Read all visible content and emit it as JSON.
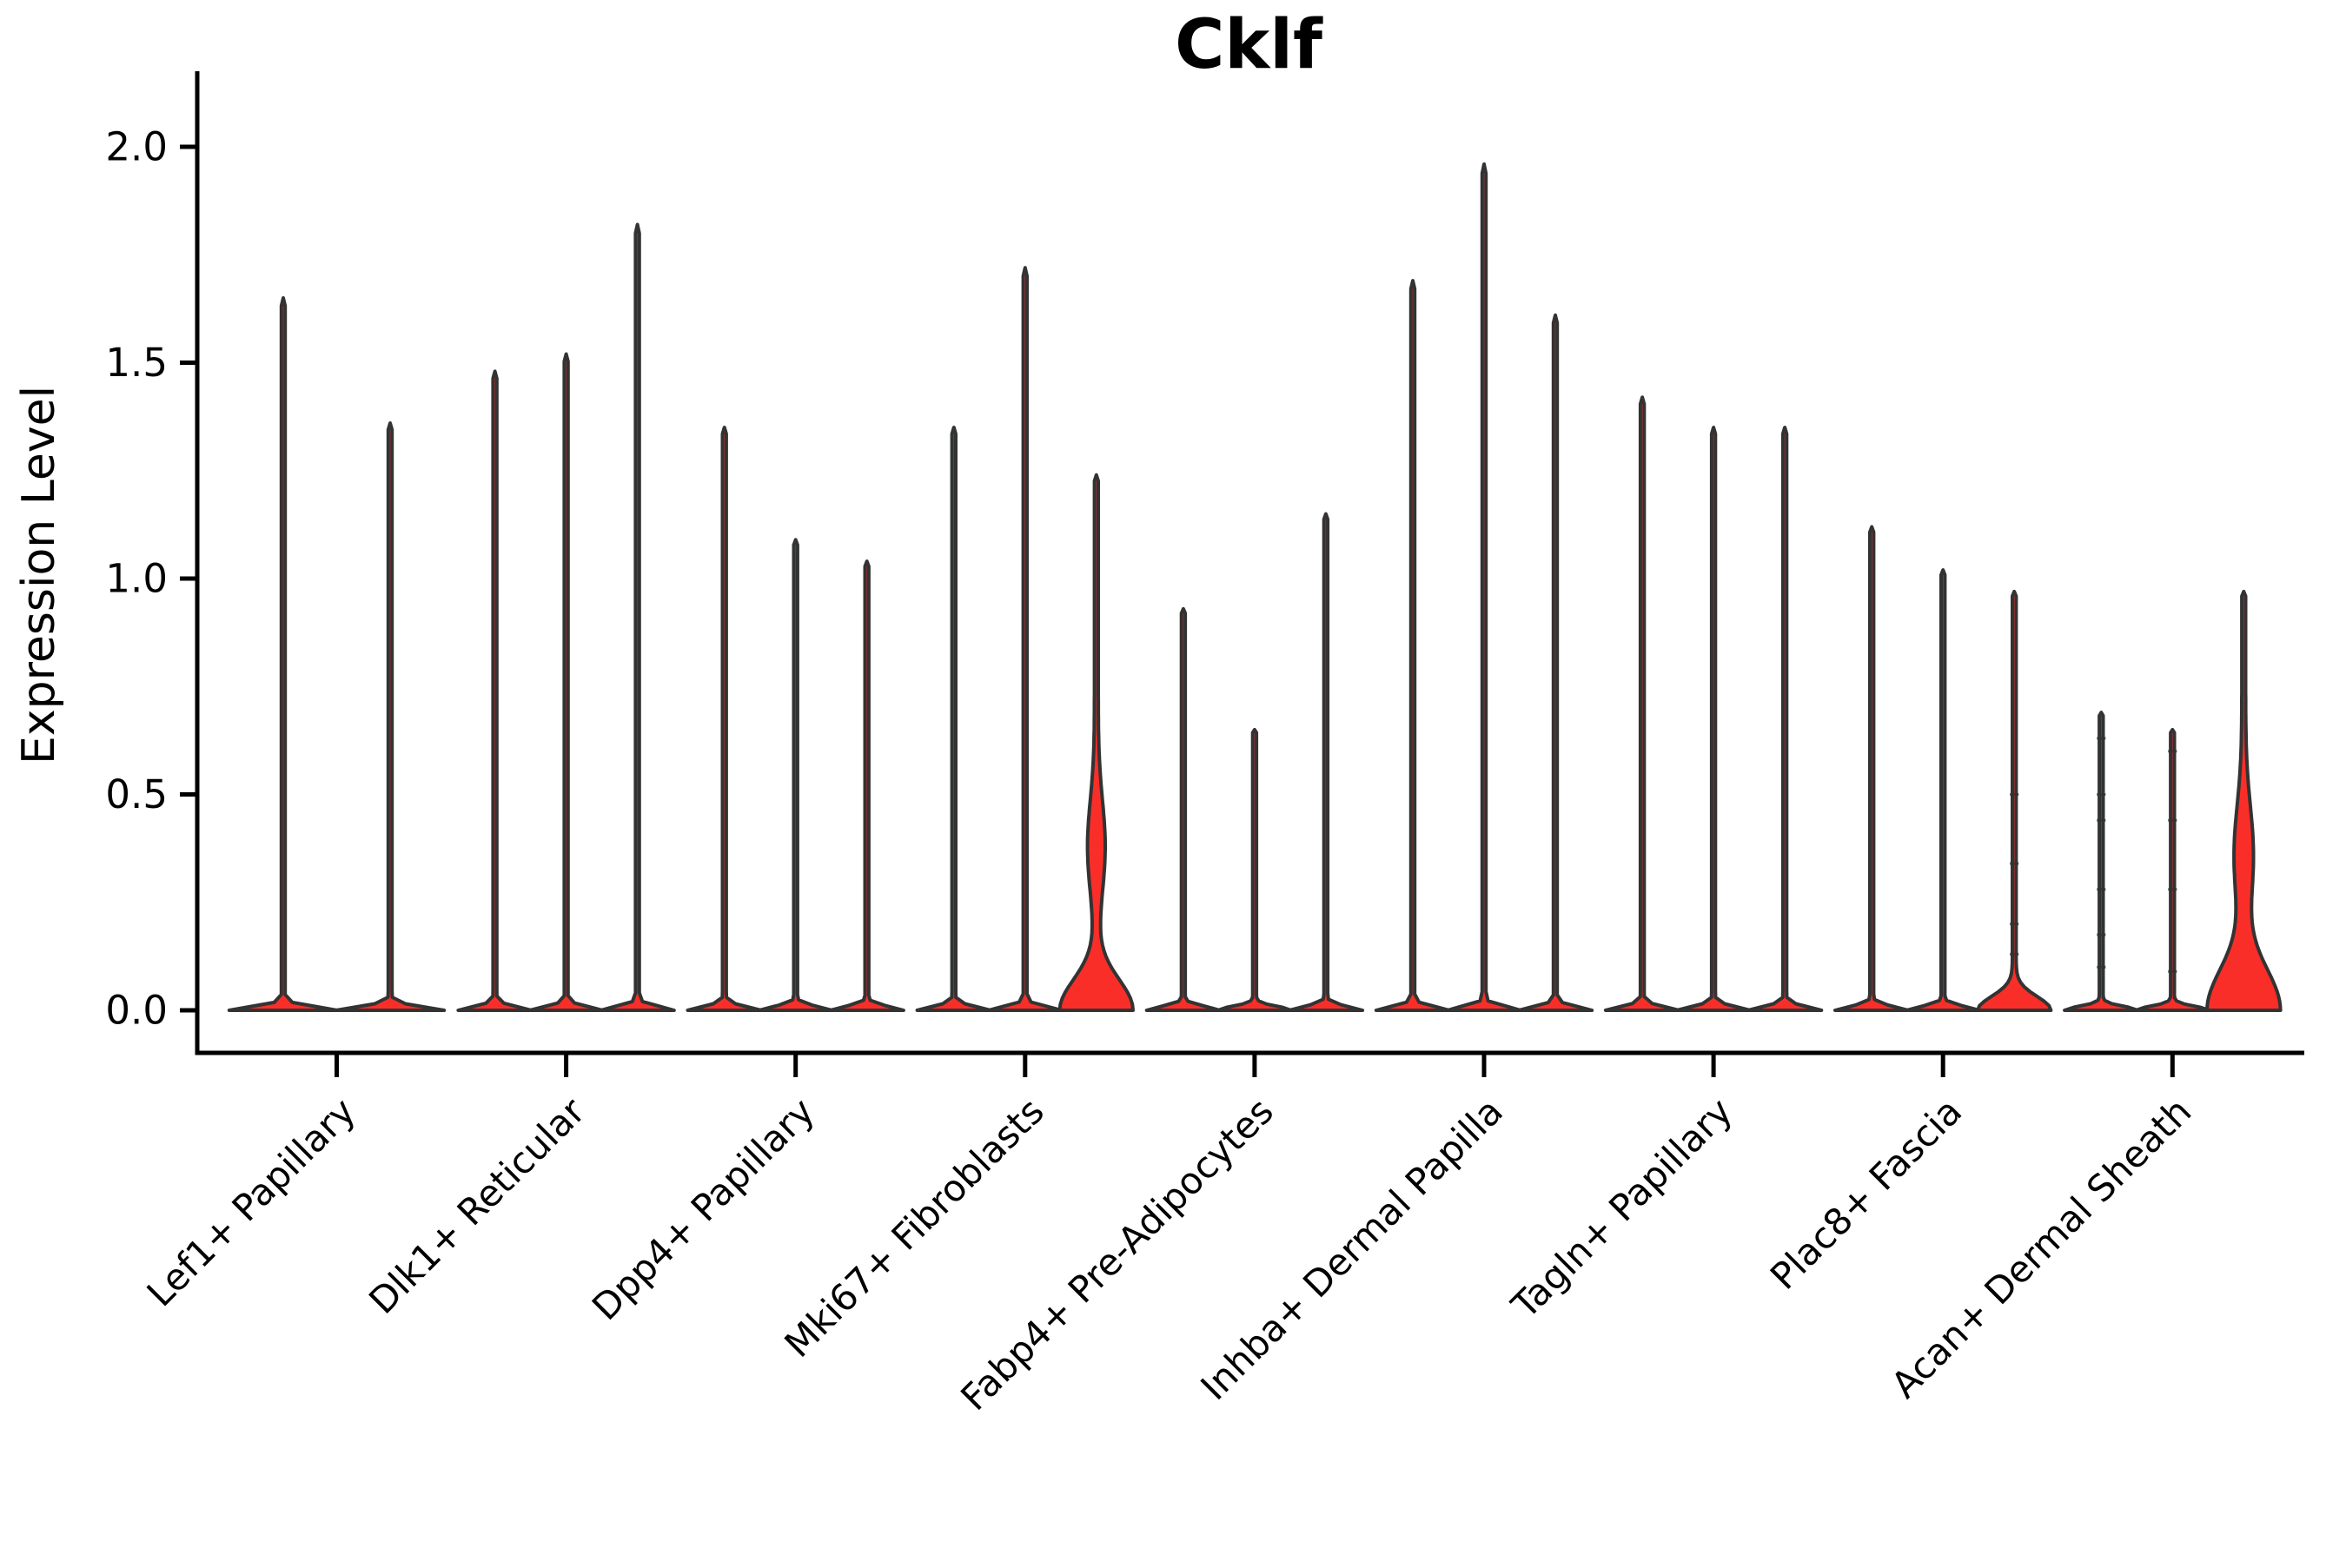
{
  "colors": {
    "violin_fill": "#fa2e28",
    "violin_edge": "#333333",
    "axis": "#000000",
    "background": "#ffffff"
  },
  "chart_data": {
    "type": "violin",
    "title": "Cklf",
    "xlabel": "",
    "ylabel": "Expression Level",
    "ylim": [
      0.0,
      2.0
    ],
    "ytick_labels": [
      "0.0",
      "0.5",
      "1.0",
      "1.5",
      "2.0"
    ],
    "ytick_values": [
      0.0,
      0.5,
      1.0,
      1.5,
      2.0
    ],
    "grid": false,
    "legend": "none",
    "categories": [
      "Lef1+ Papillary",
      "Dlk1+ Reticular",
      "Dpp4+ Papillary",
      "Mki67+ Fibroblasts",
      "Fabp4+ Pre-Adipocytes",
      "Inhba+ Dermal Papilla",
      "Tagln+ Papillary",
      "Plac8+ Fascia",
      "Acan+ Dermal Sheath"
    ],
    "groups": [
      {
        "category": "Lef1+ Papillary",
        "violins": [
          {
            "max": 1.65
          },
          {
            "max": 1.36
          }
        ]
      },
      {
        "category": "Dlk1+ Reticular",
        "violins": [
          {
            "max": 1.48
          },
          {
            "max": 1.52
          },
          {
            "max": 1.82
          }
        ]
      },
      {
        "category": "Dpp4+ Papillary",
        "violins": [
          {
            "max": 1.35
          },
          {
            "max": 1.09
          },
          {
            "max": 1.04
          }
        ]
      },
      {
        "category": "Mki67+ Fibroblasts",
        "violins": [
          {
            "max": 1.35
          },
          {
            "max": 1.72
          },
          {
            "max": 1.24,
            "body": {
              "base_sigma": 0.1,
              "bulge_center": 0.38,
              "bulge_sigma": 0.15,
              "bulge_hw": 8
            }
          }
        ]
      },
      {
        "category": "Fabp4+ Pre-Adipocytes",
        "violins": [
          {
            "max": 0.93
          },
          {
            "max": 0.65
          },
          {
            "max": 1.15
          }
        ]
      },
      {
        "category": "Inhba+ Dermal Papilla",
        "violins": [
          {
            "max": 1.69
          },
          {
            "max": 1.96
          },
          {
            "max": 1.61
          }
        ]
      },
      {
        "category": "Tagln+ Papillary",
        "violins": [
          {
            "max": 1.42
          },
          {
            "max": 1.35
          },
          {
            "max": 1.35
          }
        ]
      },
      {
        "category": "Plac8+ Fascia",
        "violins": [
          {
            "max": 1.12
          },
          {
            "max": 1.02
          },
          {
            "max": 0.97,
            "body": {
              "base_sigma": 0.045
            },
            "points": [
              0.13,
              0.2,
              0.34,
              0.5
            ]
          }
        ]
      },
      {
        "category": "Acan+ Dermal Sheath",
        "violins": [
          {
            "max": 0.69,
            "points": [
              0.1,
              0.175,
              0.28,
              0.44,
              0.5,
              0.63
            ]
          },
          {
            "max": 0.65,
            "points": [
              0.09,
              0.28,
              0.44,
              0.6
            ]
          },
          {
            "max": 0.97,
            "body": {
              "base_sigma": 0.135,
              "bulge_center": 0.36,
              "bulge_sigma": 0.16,
              "bulge_hw": 9
            }
          }
        ]
      }
    ]
  }
}
